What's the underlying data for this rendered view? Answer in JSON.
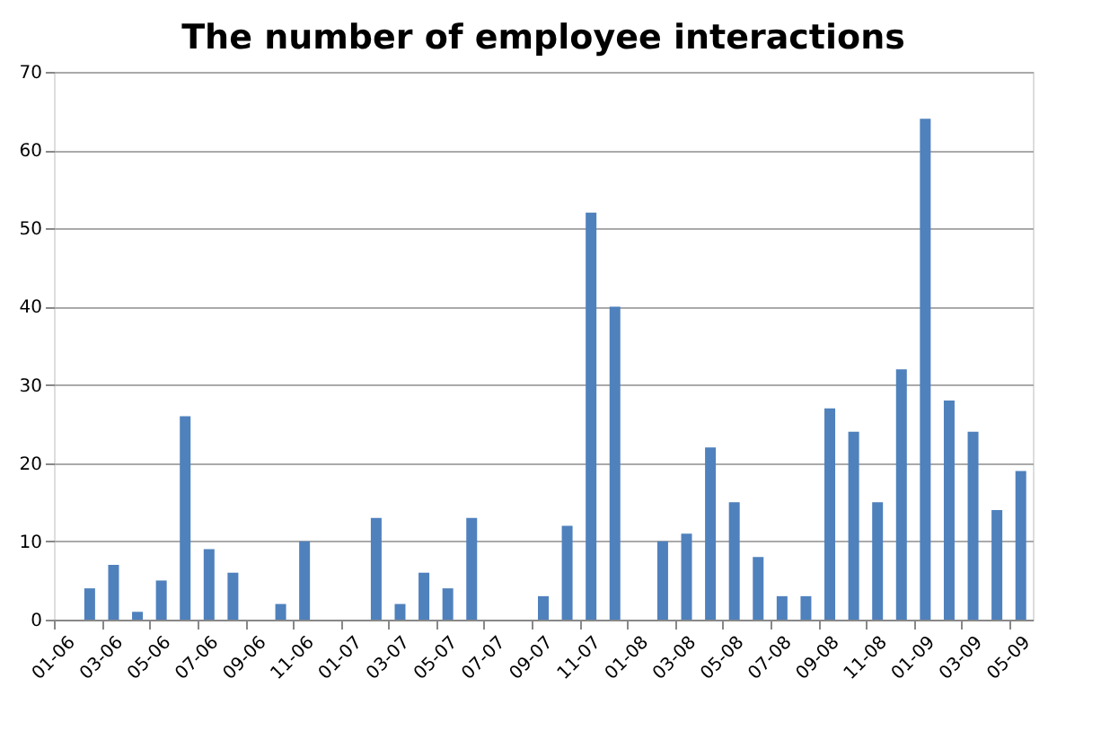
{
  "chart_data": {
    "type": "bar",
    "title": "The number of employee interactions",
    "categories": [
      "01-06",
      null,
      "03-06",
      null,
      "05-06",
      null,
      "07-06",
      null,
      "09-06",
      null,
      "11-06",
      null,
      "01-07",
      null,
      "03-07",
      null,
      "05-07",
      null,
      "07-07",
      null,
      "09-07",
      null,
      "11-07",
      null,
      "01-08",
      null,
      "03-08",
      null,
      "05-08",
      null,
      "07-08",
      null,
      "09-08",
      null,
      "11-08",
      null,
      "01-09",
      null,
      "03-09",
      null,
      "05-09"
    ],
    "values": [
      0,
      4,
      7,
      1,
      5,
      26,
      9,
      6,
      0,
      2,
      10,
      0,
      0,
      13,
      2,
      6,
      4,
      13,
      0,
      0,
      3,
      12,
      52,
      40,
      0,
      10,
      11,
      22,
      15,
      8,
      3,
      3,
      27,
      24,
      15,
      32,
      64,
      28,
      24,
      14,
      19
    ],
    "color": "#4f81bd",
    "ylim": [
      0,
      70
    ],
    "yticks": [
      0,
      10,
      20,
      30,
      40,
      50,
      60,
      70
    ],
    "grid": "y"
  }
}
